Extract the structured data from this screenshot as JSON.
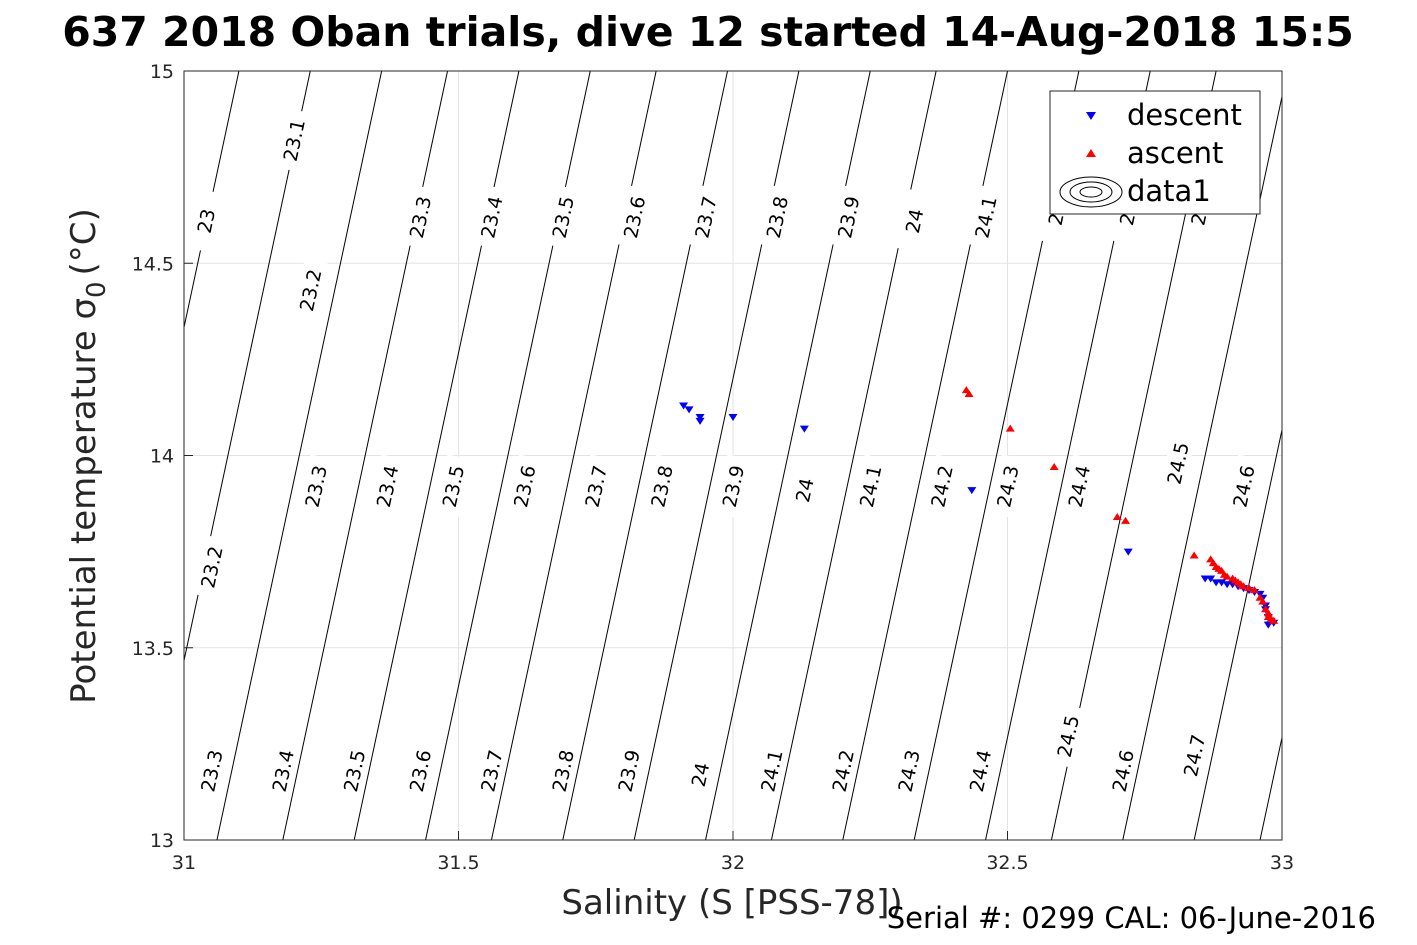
{
  "chart_data": {
    "type": "scatter",
    "title": "637 2018 Oban trials, dive 12 started 14-Aug-2018 15:5",
    "xlabel": "Salinity (S [PSS-78])",
    "ylabel": "Potential temperature σ",
    "ylabel_sub": "0",
    "ylabel_unit": "(°C)",
    "xlim": [
      31,
      33
    ],
    "ylim": [
      13,
      15
    ],
    "grid": true,
    "xticks": [
      "31",
      "31.5",
      "32",
      "32.5",
      "33"
    ],
    "yticks": [
      "13",
      "13.5",
      "14",
      "14.5",
      "15"
    ],
    "legend_position": "top-right",
    "legend": [
      "descent",
      "ascent",
      "data1"
    ],
    "series": [
      {
        "name": "descent",
        "marker": "triangle-down",
        "color": "#0000ff",
        "points": [
          [
            31.91,
            14.13
          ],
          [
            31.92,
            14.12
          ],
          [
            31.94,
            14.1
          ],
          [
            31.94,
            14.09
          ],
          [
            32.0,
            14.1
          ],
          [
            32.13,
            14.07
          ],
          [
            32.435,
            13.91
          ],
          [
            32.72,
            13.75
          ],
          [
            32.86,
            13.68
          ],
          [
            32.87,
            13.68
          ],
          [
            32.88,
            13.67
          ],
          [
            32.89,
            13.67
          ],
          [
            32.9,
            13.665
          ],
          [
            32.91,
            13.665
          ],
          [
            32.92,
            13.66
          ],
          [
            32.93,
            13.655
          ],
          [
            32.94,
            13.65
          ],
          [
            32.95,
            13.645
          ],
          [
            32.96,
            13.64
          ],
          [
            32.965,
            13.63
          ],
          [
            32.97,
            13.61
          ],
          [
            32.97,
            13.6
          ],
          [
            32.975,
            13.58
          ],
          [
            32.98,
            13.57
          ],
          [
            32.975,
            13.56
          ],
          [
            32.985,
            13.565
          ]
        ]
      },
      {
        "name": "ascent",
        "marker": "triangle-up",
        "color": "#ff0000",
        "points": [
          [
            32.425,
            14.17
          ],
          [
            32.43,
            14.16
          ],
          [
            32.505,
            14.07
          ],
          [
            32.585,
            13.97
          ],
          [
            32.7,
            13.84
          ],
          [
            32.715,
            13.83
          ],
          [
            32.84,
            13.74
          ],
          [
            32.87,
            13.73
          ],
          [
            32.875,
            13.72
          ],
          [
            32.88,
            13.71
          ],
          [
            32.885,
            13.705
          ],
          [
            32.89,
            13.7
          ],
          [
            32.895,
            13.69
          ],
          [
            32.9,
            13.685
          ],
          [
            32.91,
            13.68
          ],
          [
            32.915,
            13.675
          ],
          [
            32.92,
            13.67
          ],
          [
            32.925,
            13.665
          ],
          [
            32.93,
            13.66
          ],
          [
            32.94,
            13.655
          ],
          [
            32.95,
            13.65
          ],
          [
            32.96,
            13.63
          ],
          [
            32.965,
            13.62
          ],
          [
            32.97,
            13.6
          ],
          [
            32.975,
            13.59
          ],
          [
            32.975,
            13.58
          ],
          [
            32.98,
            13.575
          ],
          [
            32.985,
            13.57
          ]
        ]
      }
    ],
    "contours": {
      "line_color": "#000000",
      "line_positions": [
        30.42,
        30.55,
        30.68,
        30.8,
        30.93,
        31.06,
        31.18,
        31.31,
        31.44,
        31.56,
        31.69,
        31.82,
        31.95,
        32.07,
        32.2,
        32.33,
        32.46,
        32.58,
        32.71,
        32.84,
        32.96,
        33.09
      ],
      "labels": [
        {
          "text": "23.1",
          "s": 31.2,
          "t": 14.82
        },
        {
          "text": "23",
          "s": 31.04,
          "t": 14.61
        },
        {
          "text": "23.3",
          "s": 31.43,
          "t": 14.62
        },
        {
          "text": "23.4",
          "s": 31.56,
          "t": 14.62
        },
        {
          "text": "23.5",
          "s": 31.69,
          "t": 14.62
        },
        {
          "text": "23.6",
          "s": 31.82,
          "t": 14.62
        },
        {
          "text": "23.7",
          "s": 31.95,
          "t": 14.62
        },
        {
          "text": "23.8",
          "s": 32.08,
          "t": 14.62
        },
        {
          "text": "23.9",
          "s": 32.21,
          "t": 14.62
        },
        {
          "text": "24",
          "s": 32.33,
          "t": 14.61
        },
        {
          "text": "24.1",
          "s": 32.46,
          "t": 14.62
        },
        {
          "text": "24",
          "s": 32.59,
          "t": 14.63
        },
        {
          "text": "24",
          "s": 32.72,
          "t": 14.63
        },
        {
          "text": "24",
          "s": 32.85,
          "t": 14.63
        },
        {
          "text": "23.2",
          "s": 31.23,
          "t": 14.43
        },
        {
          "text": "23.3",
          "s": 31.24,
          "t": 13.92
        },
        {
          "text": "23.4",
          "s": 31.37,
          "t": 13.92
        },
        {
          "text": "23.5",
          "s": 31.49,
          "t": 13.92
        },
        {
          "text": "23.6",
          "s": 31.62,
          "t": 13.92
        },
        {
          "text": "23.7",
          "s": 31.75,
          "t": 13.92
        },
        {
          "text": "23.8",
          "s": 31.87,
          "t": 13.92
        },
        {
          "text": "23.9",
          "s": 32.0,
          "t": 13.92
        },
        {
          "text": "24",
          "s": 32.13,
          "t": 13.91
        },
        {
          "text": "24.1",
          "s": 32.25,
          "t": 13.92
        },
        {
          "text": "24.2",
          "s": 32.38,
          "t": 13.92
        },
        {
          "text": "24.3",
          "s": 32.5,
          "t": 13.92
        },
        {
          "text": "24.4",
          "s": 32.63,
          "t": 13.92
        },
        {
          "text": "24.5",
          "s": 32.81,
          "t": 13.98
        },
        {
          "text": "24.6",
          "s": 32.93,
          "t": 13.92
        },
        {
          "text": "23.2",
          "s": 31.05,
          "t": 13.71
        },
        {
          "text": "23.3",
          "s": 31.05,
          "t": 13.18
        },
        {
          "text": "23.4",
          "s": 31.18,
          "t": 13.18
        },
        {
          "text": "23.5",
          "s": 31.31,
          "t": 13.18
        },
        {
          "text": "23.6",
          "s": 31.43,
          "t": 13.18
        },
        {
          "text": "23.7",
          "s": 31.56,
          "t": 13.18
        },
        {
          "text": "23.8",
          "s": 31.69,
          "t": 13.18
        },
        {
          "text": "23.9",
          "s": 31.81,
          "t": 13.18
        },
        {
          "text": "24",
          "s": 31.94,
          "t": 13.17
        },
        {
          "text": "24.1",
          "s": 32.07,
          "t": 13.18
        },
        {
          "text": "24.2",
          "s": 32.2,
          "t": 13.18
        },
        {
          "text": "24.3",
          "s": 32.32,
          "t": 13.18
        },
        {
          "text": "24.4",
          "s": 32.45,
          "t": 13.18
        },
        {
          "text": "24.5",
          "s": 32.61,
          "t": 13.27
        },
        {
          "text": "24.6",
          "s": 32.71,
          "t": 13.18
        },
        {
          "text": "24.7",
          "s": 32.84,
          "t": 13.22
        }
      ]
    }
  },
  "footer": {
    "serial": "Serial #: 0299 CAL: 06-June-2016"
  }
}
